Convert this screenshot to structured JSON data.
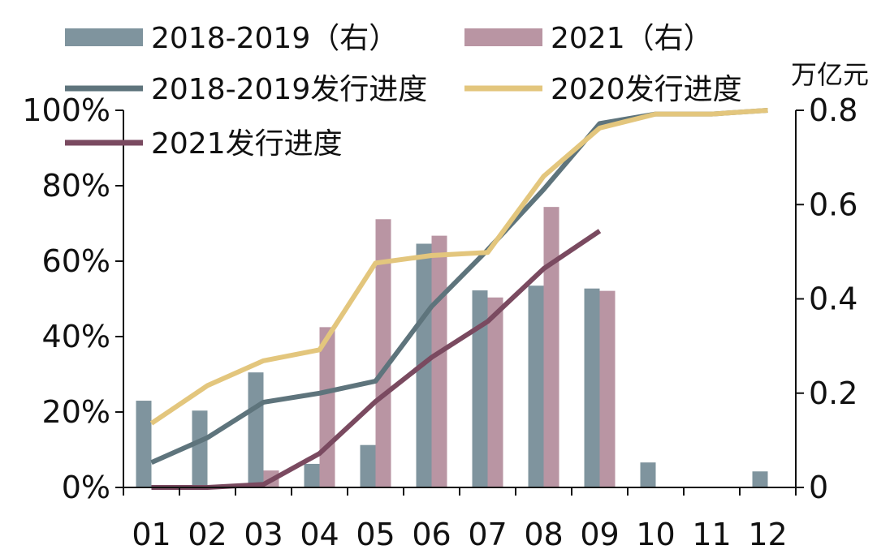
{
  "chart_data": {
    "type": "bar+line",
    "title": "",
    "categories": [
      "01",
      "02",
      "03",
      "04",
      "05",
      "06",
      "07",
      "08",
      "09",
      "10",
      "11",
      "12"
    ],
    "y_left": {
      "ylim": [
        0,
        100
      ],
      "ticks": [
        "0%",
        "20%",
        "40%",
        "60%",
        "80%",
        "100%"
      ],
      "tick_values": [
        0,
        20,
        40,
        60,
        80,
        100
      ]
    },
    "y_right": {
      "ylim": [
        0,
        0.8
      ],
      "unit": "万亿元",
      "ticks": [
        "0",
        "0.2",
        "0.4",
        "0.6",
        "0.8"
      ],
      "tick_values": [
        0,
        0.2,
        0.4,
        0.6,
        0.8
      ]
    },
    "bar_series": [
      {
        "name": "2018-2019（右）",
        "color": "#7f949e",
        "axis": "right",
        "values": [
          0.184,
          0.163,
          0.244,
          0.05,
          0.09,
          0.517,
          0.418,
          0.428,
          0.422,
          0.053,
          null,
          0.034
        ]
      },
      {
        "name": "2021（右）",
        "color": "#b995a3",
        "axis": "right",
        "values": [
          null,
          null,
          0.036,
          0.34,
          0.569,
          0.534,
          0.403,
          0.595,
          0.417,
          null,
          null,
          null
        ]
      }
    ],
    "line_series": [
      {
        "name": "2018-2019发行进度",
        "color": "#5e747c",
        "axis": "left",
        "values": [
          6.6,
          13.2,
          22.6,
          25.0,
          28.2,
          48.0,
          63.0,
          79.0,
          96.5,
          99.0,
          99.0,
          100.0
        ]
      },
      {
        "name": "2020发行进度",
        "color": "#e3c67d",
        "axis": "left",
        "values": [
          17.0,
          27.0,
          33.6,
          36.5,
          59.5,
          61.5,
          62.3,
          82.5,
          95.3,
          99.0,
          99.0,
          100.0
        ]
      },
      {
        "name": "2021发行进度",
        "color": "#7a4a60",
        "axis": "left",
        "values": [
          0.0,
          0.0,
          0.8,
          9.0,
          22.8,
          34.5,
          44.0,
          58.0,
          68.0,
          null,
          null,
          null
        ]
      }
    ],
    "legend_placement": "top-left",
    "grid": false
  }
}
